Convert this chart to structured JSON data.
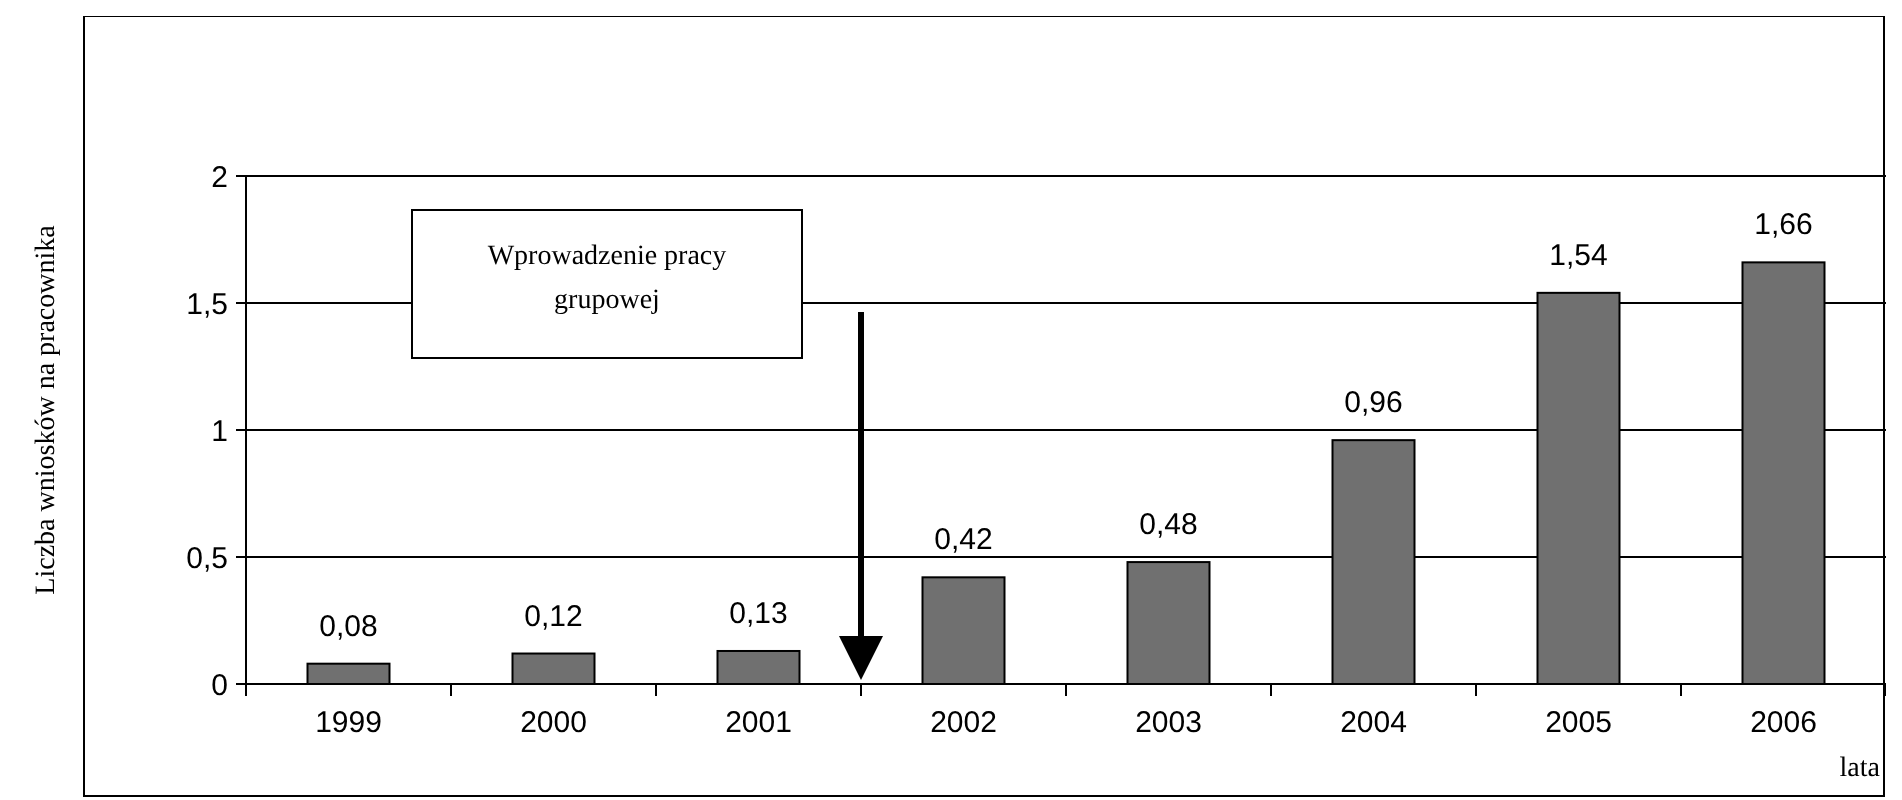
{
  "chart_data": {
    "type": "bar",
    "xlabel": "lata",
    "ylabel": "Liczba wniosków na pracownika",
    "categories": [
      "1999",
      "2000",
      "2001",
      "2002",
      "2003",
      "2004",
      "2005",
      "2006"
    ],
    "values": [
      0.08,
      0.12,
      0.13,
      0.42,
      0.48,
      0.96,
      1.54,
      1.66
    ],
    "value_labels": [
      "0,08",
      "0,12",
      "0,13",
      "0,42",
      "0,48",
      "0,96",
      "1,54",
      "1,66"
    ],
    "color": "#707070",
    "ylim": [
      0,
      2
    ],
    "yticks": [
      0,
      {
        "value": 0.5,
        "label": "0,5"
      },
      1,
      {
        "value": 1.5,
        "label": "1,5"
      },
      2
    ],
    "grid": "y",
    "annotations": [
      "Wprowadzenie pracy grupowej"
    ]
  }
}
